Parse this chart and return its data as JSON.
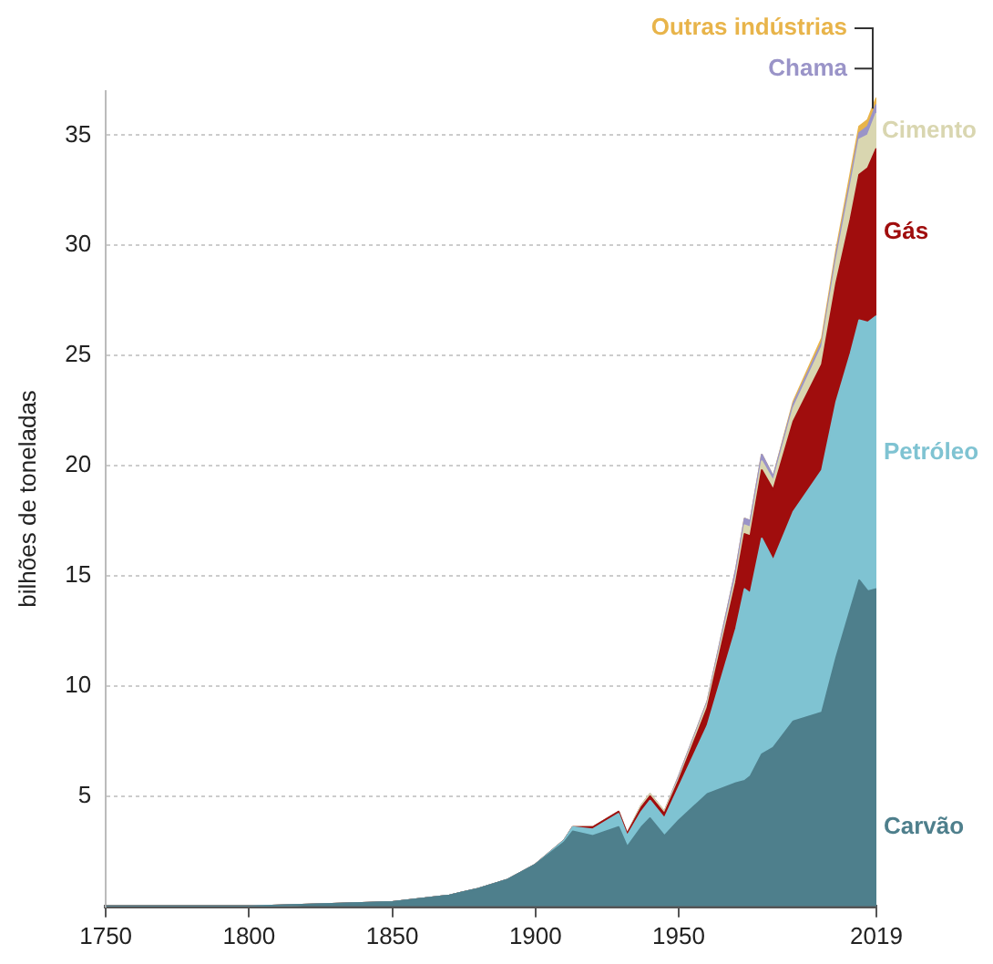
{
  "chart_data": {
    "type": "area",
    "stacked": true,
    "ylabel": "bilhões de toneladas",
    "x": [
      1750,
      1800,
      1850,
      1870,
      1880,
      1890,
      1900,
      1910,
      1913,
      1920,
      1929,
      1932,
      1937,
      1940,
      1945,
      1950,
      1960,
      1970,
      1973,
      1975,
      1979,
      1983,
      1990,
      2000,
      2005,
      2010,
      2013,
      2016,
      2019
    ],
    "series": [
      {
        "name": "Carvão",
        "color": "#4e7f8c",
        "values": [
          0,
          0,
          0.2,
          0.5,
          0.8,
          1.2,
          1.9,
          2.9,
          3.4,
          3.2,
          3.6,
          2.7,
          3.6,
          4.0,
          3.2,
          3.9,
          5.1,
          5.6,
          5.7,
          5.9,
          6.9,
          7.2,
          8.4,
          8.8,
          11.3,
          13.5,
          14.8,
          14.3,
          14.4
        ]
      },
      {
        "name": "Petróleo",
        "color": "#7fc3d2",
        "values": [
          0,
          0,
          0,
          0,
          0,
          0,
          0,
          0.1,
          0.2,
          0.3,
          0.6,
          0.5,
          0.7,
          0.8,
          0.8,
          1.5,
          3.1,
          7.0,
          8.7,
          8.3,
          9.8,
          8.5,
          9.5,
          11.0,
          11.6,
          11.6,
          11.8,
          12.2,
          12.4
        ]
      },
      {
        "name": "Gás",
        "color": "#a00d0d",
        "values": [
          0,
          0,
          0,
          0,
          0,
          0,
          0,
          0,
          0,
          0.1,
          0.1,
          0.1,
          0.2,
          0.2,
          0.2,
          0.3,
          0.8,
          2.1,
          2.5,
          2.6,
          3.1,
          3.2,
          4.1,
          4.8,
          5.4,
          6.1,
          6.6,
          7.0,
          7.6
        ]
      },
      {
        "name": "Cimento",
        "color": "#d9d6b0",
        "values": [
          0,
          0,
          0,
          0,
          0,
          0,
          0,
          0,
          0,
          0,
          0,
          0,
          0.1,
          0.1,
          0.1,
          0.1,
          0.2,
          0.3,
          0.4,
          0.4,
          0.4,
          0.4,
          0.6,
          0.8,
          1.0,
          1.5,
          1.6,
          1.5,
          1.6
        ]
      },
      {
        "name": "Chama",
        "color": "#9a94c8",
        "values": [
          0,
          0,
          0,
          0,
          0,
          0,
          0,
          0,
          0,
          0,
          0,
          0,
          0,
          0,
          0,
          0.1,
          0.1,
          0.3,
          0.3,
          0.3,
          0.3,
          0.2,
          0.2,
          0.2,
          0.3,
          0.3,
          0.3,
          0.4,
          0.4
        ]
      },
      {
        "name": "Outras indústrias",
        "color": "#e8b44a",
        "values": [
          0,
          0,
          0,
          0,
          0,
          0,
          0,
          0,
          0,
          0,
          0,
          0,
          0,
          0,
          0,
          0,
          0,
          0,
          0,
          0,
          0,
          0,
          0.1,
          0.2,
          0.2,
          0.3,
          0.3,
          0.3,
          0.3
        ]
      }
    ],
    "xlim": [
      1750,
      2019
    ],
    "xticks": [
      1750,
      1800,
      1850,
      1900,
      1950,
      2019
    ],
    "ylim": [
      0,
      37
    ],
    "yticks": [
      5,
      10,
      15,
      20,
      25,
      30,
      35
    ],
    "grid": "y",
    "legend": false
  }
}
